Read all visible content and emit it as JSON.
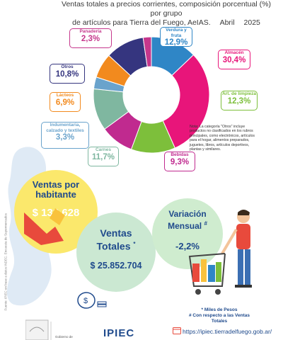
{
  "header": {
    "title_line1": "Ventas totales a precios corrientes, composición porcentual (%) por grupo",
    "title_line2": "de artículos para Tierra del Fuego, AeIAS.",
    "month": "Abril",
    "year": "2025"
  },
  "chart_data": {
    "type": "pie",
    "donut": true,
    "categories": [
      "Verdura y fruta",
      "Almacén",
      "Art. de limpieza",
      "Bebidas",
      "Carnes",
      "Indumentaria, calzado y textiles",
      "Lácteos",
      "Otros",
      "Panadería"
    ],
    "values": [
      12.9,
      30.4,
      12.3,
      9.3,
      11.7,
      3.3,
      6.9,
      10.8,
      2.3
    ],
    "labels": [
      "12,9%",
      "30,4%",
      "12,3%",
      "9,3%",
      "11,7%",
      "3,3%",
      "6,9%",
      "10,8%",
      "2,3%"
    ],
    "colors": [
      "#2f86c6",
      "#e8157a",
      "#7dbf3b",
      "#c02a8f",
      "#7fb7a0",
      "#6aa3cc",
      "#f28a1e",
      "#35357f",
      "#c5378c"
    ],
    "legend": "callouts"
  },
  "labels": {
    "verdura": {
      "cat": "Verdura y fruta",
      "val": "12,9%"
    },
    "almacen": {
      "cat": "Almacén",
      "val": "30,4%"
    },
    "limpieza": {
      "cat": "Art. de limpieza",
      "val": "12,3%"
    },
    "bebidas": {
      "cat": "Bebidas",
      "val": "9,3%"
    },
    "carnes": {
      "cat": "Carnes",
      "val": "11,7%"
    },
    "indumentaria_1": "Indumentaria,",
    "indumentaria_2": "calzado y textiles",
    "indumentaria_val": "3,3%",
    "lacteos": {
      "cat": "Lácteos",
      "val": "6,9%"
    },
    "otros": {
      "cat": "Otros",
      "val": "10,8%"
    },
    "panaderia": {
      "cat": "Panadería",
      "val": "2,3%"
    }
  },
  "note": "Nota: La categoría \"Otros\" incluye productos no clasificados en los rubros principales, como electrónicos, artículos para el hogar, alimentos preparados, juguetes, libros, artículos deportivos, plantas y similares.",
  "kpis": {
    "ventas_por_habitante": {
      "title1": "Ventas por",
      "title2": "habitante",
      "value": "$ 132.628"
    },
    "ventas_totales": {
      "title1": "Ventas",
      "title2": "Totales",
      "mark": "*",
      "value": "$ 25.852.704"
    },
    "variacion": {
      "title1": "Variación",
      "title2": "Mensual",
      "mark": "#",
      "value": "-2,2%"
    }
  },
  "footnotes": {
    "miles": "* Miles de Pesos",
    "respecto": "# Con respecto a las Ventas Totales"
  },
  "source": "Fuente: IPIEC en base a datos INDEC. Encuesta de Supermercados",
  "url": "https://ipiec.tierradelfuego.gob.ar/",
  "gob_text": "Gobierno de",
  "brand": "IPIEC"
}
